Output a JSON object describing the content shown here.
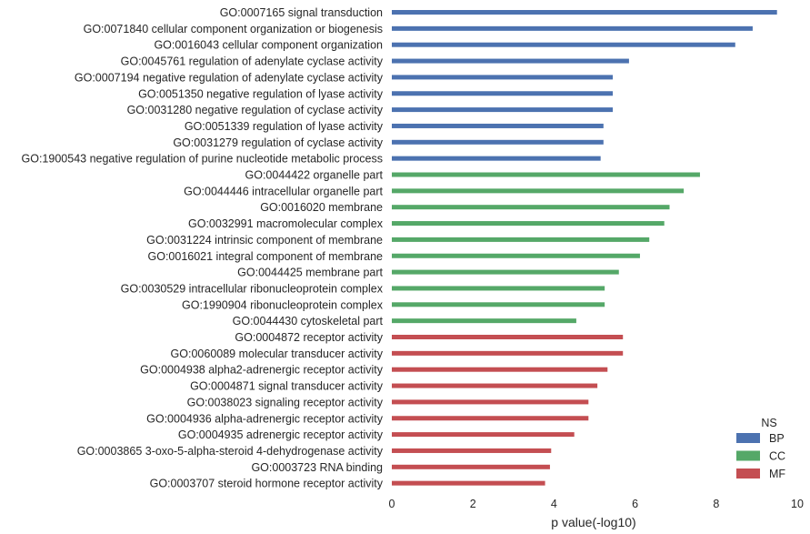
{
  "chart_data": {
    "type": "bar",
    "orientation": "horizontal",
    "xlabel": "p value(-log10)",
    "ylabel": "",
    "xlim": [
      0,
      10
    ],
    "xticks": [
      "0",
      "2",
      "4",
      "6",
      "8",
      "10"
    ],
    "grid": false,
    "legend": {
      "title": "NS",
      "placement": "bottom-right",
      "entries": [
        {
          "name": "BP",
          "color": "#4c72b0"
        },
        {
          "name": "CC",
          "color": "#55a868"
        },
        {
          "name": "MF",
          "color": "#c44e52"
        }
      ]
    },
    "bars": [
      {
        "label": "GO:0007165 signal transduction",
        "value": 9.5,
        "group": "BP"
      },
      {
        "label": "GO:0071840 cellular component organization or biogenesis",
        "value": 8.9,
        "group": "BP"
      },
      {
        "label": "GO:0016043 cellular component organization",
        "value": 8.47,
        "group": "BP"
      },
      {
        "label": "GO:0045761 regulation of adenylate cyclase activity",
        "value": 5.85,
        "group": "BP"
      },
      {
        "label": "GO:0007194 negative regulation of adenylate cyclase activity",
        "value": 5.45,
        "group": "BP"
      },
      {
        "label": "GO:0051350 negative regulation of lyase activity",
        "value": 5.45,
        "group": "BP"
      },
      {
        "label": "GO:0031280 negative regulation of cyclase activity",
        "value": 5.45,
        "group": "BP"
      },
      {
        "label": "GO:0051339 regulation of lyase activity",
        "value": 5.22,
        "group": "BP"
      },
      {
        "label": "GO:0031279 regulation of cyclase activity",
        "value": 5.22,
        "group": "BP"
      },
      {
        "label": "GO:1900543 negative regulation of purine nucleotide metabolic process",
        "value": 5.15,
        "group": "BP"
      },
      {
        "label": "GO:0044422 organelle part",
        "value": 7.6,
        "group": "CC"
      },
      {
        "label": "GO:0044446 intracellular organelle part",
        "value": 7.2,
        "group": "CC"
      },
      {
        "label": "GO:0016020 membrane",
        "value": 6.85,
        "group": "CC"
      },
      {
        "label": "GO:0032991 macromolecular complex",
        "value": 6.72,
        "group": "CC"
      },
      {
        "label": "GO:0031224 intrinsic component of membrane",
        "value": 6.35,
        "group": "CC"
      },
      {
        "label": "GO:0016021 integral component of membrane",
        "value": 6.12,
        "group": "CC"
      },
      {
        "label": "GO:0044425 membrane part",
        "value": 5.6,
        "group": "CC"
      },
      {
        "label": "GO:0030529 intracellular ribonucleoprotein complex",
        "value": 5.25,
        "group": "CC"
      },
      {
        "label": "GO:1990904 ribonucleoprotein complex",
        "value": 5.25,
        "group": "CC"
      },
      {
        "label": "GO:0044430 cytoskeletal part",
        "value": 4.55,
        "group": "CC"
      },
      {
        "label": "GO:0004872 receptor activity",
        "value": 5.7,
        "group": "MF"
      },
      {
        "label": "GO:0060089 molecular transducer activity",
        "value": 5.7,
        "group": "MF"
      },
      {
        "label": "GO:0004938 alpha2-adrenergic receptor activity",
        "value": 5.32,
        "group": "MF"
      },
      {
        "label": "GO:0004871 signal transducer activity",
        "value": 5.07,
        "group": "MF"
      },
      {
        "label": "GO:0038023 signaling receptor activity",
        "value": 4.85,
        "group": "MF"
      },
      {
        "label": "GO:0004936 alpha-adrenergic receptor activity",
        "value": 4.85,
        "group": "MF"
      },
      {
        "label": "GO:0004935 adrenergic receptor activity",
        "value": 4.5,
        "group": "MF"
      },
      {
        "label": "GO:0003865 3-oxo-5-alpha-steroid 4-dehydrogenase activity",
        "value": 3.93,
        "group": "MF"
      },
      {
        "label": "GO:0003723 RNA binding",
        "value": 3.9,
        "group": "MF"
      },
      {
        "label": "GO:0003707 steroid hormone receptor activity",
        "value": 3.78,
        "group": "MF"
      }
    ]
  }
}
